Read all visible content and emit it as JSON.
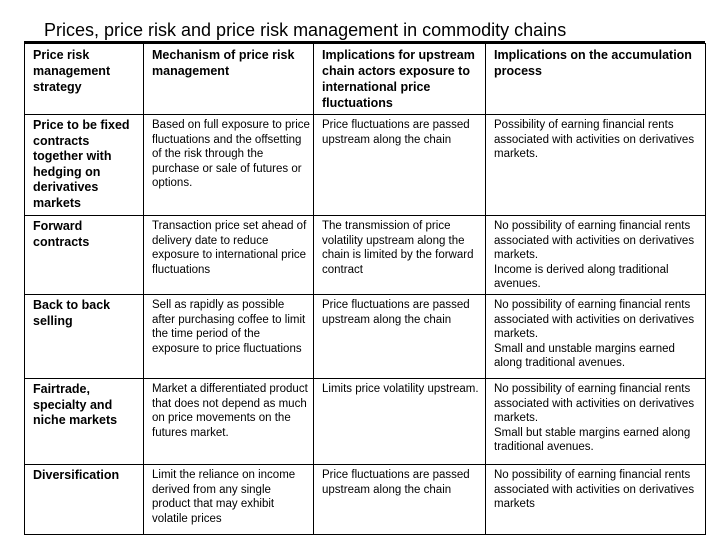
{
  "title": "Prices, price risk and price risk management in commodity chains",
  "columns": [
    "Price risk management strategy",
    "Mechanism of price risk management",
    "Implications for upstream chain actors exposure to international price fluctuations",
    "Implications on the accumulation process"
  ],
  "rows": [
    {
      "strategy": "Price to be fixed contracts together with hedging on derivatives markets",
      "mechanism": "Based on full exposure to price fluctuations and the offsetting of the risk through the purchase or sale of futures or options.",
      "upstream": "Price fluctuations are passed upstream along the chain",
      "accumulation": [
        "Possibility of earning financial rents associated with activities on derivatives markets."
      ]
    },
    {
      "strategy": "Forward contracts",
      "mechanism": "Transaction price set ahead of delivery date to reduce exposure to international price fluctuations",
      "upstream": "The transmission of price volatility upstream along the chain is limited by the forward contract",
      "accumulation": [
        "No possibility of earning financial rents associated with activities on derivatives markets.",
        "Income is derived along traditional avenues."
      ]
    },
    {
      "strategy": "Back to back selling",
      "mechanism": "Sell as rapidly as possible after purchasing coffee to limit the time period of the exposure to price fluctuations",
      "upstream": "Price fluctuations are passed upstream along the chain",
      "accumulation": [
        "No possibility of earning financial rents associated with activities on derivatives markets.",
        "Small and unstable margins earned along traditional avenues."
      ]
    },
    {
      "strategy": "Fairtrade, specialty and niche markets",
      "mechanism": "Market a differentiated product that does not depend as much on price movements on the futures market.",
      "upstream": "Limits price volatility upstream.",
      "accumulation": [
        "No possibility of earning financial rents associated with activities on derivatives markets.",
        "Small but stable margins earned along traditional avenues."
      ]
    },
    {
      "strategy": "Diversification",
      "mechanism": "Limit the reliance on income derived from any single product that may exhibit volatile prices",
      "upstream": "Price fluctuations are passed upstream along the chain",
      "accumulation": [
        "No possibility of earning financial rents associated with activities on derivatives markets"
      ]
    }
  ]
}
